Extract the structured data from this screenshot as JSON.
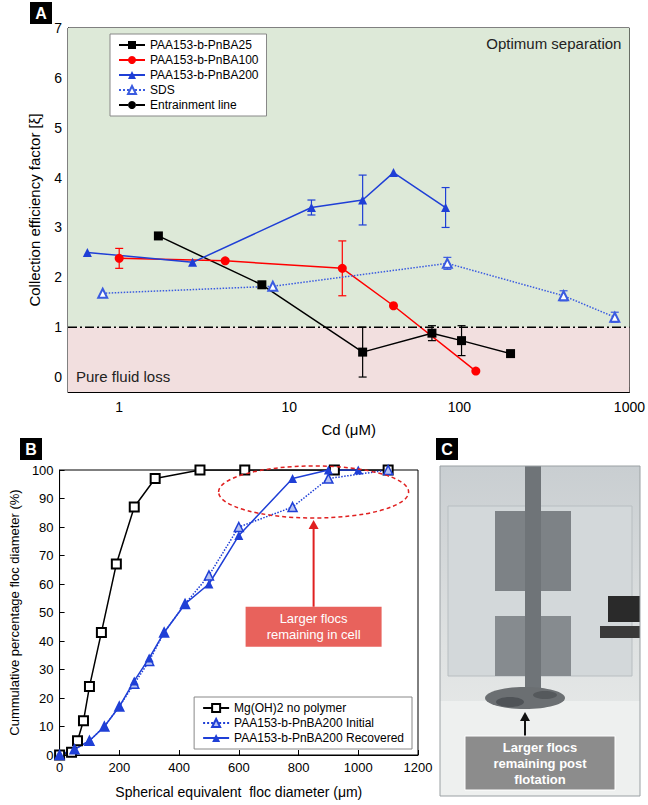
{
  "chart_data": [
    {
      "type": "line",
      "panel_label": "A",
      "x_label": "Cd (μM)",
      "y_label": "Collection efficiency factor [ξ]",
      "log": "x",
      "xlim": [
        0.5,
        1000
      ],
      "xticks": [
        1,
        10,
        100,
        1000
      ],
      "ylim": [
        -0.3,
        7
      ],
      "yticks": [
        0,
        1,
        2,
        3,
        4,
        5,
        6,
        7
      ],
      "grid": false,
      "legend": "upper left",
      "regions": [
        {
          "label": "Optimum separation",
          "range": [
            1,
            7
          ],
          "color": "#dde9d8"
        },
        {
          "label": "Pure fluid loss",
          "range": [
            -0.3,
            1
          ],
          "color": "#f2dfdf"
        }
      ],
      "series": [
        {
          "name": "PAA153-b-PnBA25",
          "color": "#000000",
          "marker": "square",
          "line_style": "solid",
          "x": [
            1.7,
            6.9,
            27,
            69,
            103,
            200
          ],
          "values": [
            2.83,
            1.85,
            0.5,
            0.88,
            0.73,
            0.47
          ],
          "errors": [
            null,
            null,
            0.5,
            0.15,
            0.3,
            null
          ]
        },
        {
          "name": "PAA153-b-PnBA100",
          "color": "#ff0000",
          "marker": "circle",
          "line_style": "solid",
          "x": [
            1.0,
            4.2,
            20.5,
            41,
            125
          ],
          "values": [
            2.38,
            2.33,
            2.18,
            1.43,
            0.12
          ],
          "errors": [
            0.2,
            null,
            0.55,
            null,
            null
          ]
        },
        {
          "name": "PAA153-b-PnBA200",
          "color": "#1f3fd6",
          "marker": "triangle",
          "line_style": "solid",
          "x": [
            0.65,
            2.7,
            13.5,
            27,
            41,
            83
          ],
          "values": [
            2.5,
            2.3,
            3.4,
            3.55,
            4.1,
            3.4
          ],
          "errors": [
            null,
            null,
            0.15,
            0.5,
            null,
            0.4
          ]
        },
        {
          "name": "SDS",
          "color": "#3a5be0",
          "marker": "open_triangle",
          "line_style": "dotted",
          "x": [
            0.8,
            8,
            85,
            410,
            820
          ],
          "values": [
            1.68,
            1.82,
            2.28,
            1.63,
            1.2
          ],
          "errors": [
            null,
            null,
            0.12,
            0.1,
            0.1
          ]
        },
        {
          "name": "Entrainment line",
          "color": "#000000",
          "marker": "none",
          "line_style": "dashdot",
          "x": [
            0.5,
            1000
          ],
          "values": [
            1,
            1
          ],
          "errors": [
            null,
            null
          ]
        }
      ]
    },
    {
      "type": "line",
      "panel_label": "B",
      "x_label": "Spherical equivalent  floc diameter (μm)",
      "y_label": "Cummulative percentage floc diameter (%)",
      "xlim": [
        0,
        1200
      ],
      "xticks": [
        0,
        200,
        400,
        600,
        800,
        1000,
        1200
      ],
      "ylim": [
        0,
        100
      ],
      "yticks": [
        0,
        10,
        20,
        30,
        40,
        50,
        60,
        70,
        80,
        90,
        100
      ],
      "grid": false,
      "legend": "lower right",
      "annotation": "Larger flocs remaining in cell",
      "series": [
        {
          "name": "Mg(OH)2 no polymer",
          "color": "#000000",
          "marker": "open_square",
          "line_style": "solid",
          "x": [
            0,
            40,
            60,
            80,
            100,
            140,
            190,
            250,
            320,
            470,
            620,
            920,
            1100
          ],
          "values": [
            0,
            1,
            5,
            12,
            24,
            43,
            67,
            87,
            97,
            100,
            100,
            100,
            100
          ]
        },
        {
          "name": "PAA153-b-PnBA200 Initial",
          "color": "#1f3fd6",
          "marker": "half_triangle",
          "line_style": "dotted",
          "x": [
            0,
            50,
            100,
            150,
            200,
            250,
            300,
            350,
            420,
            500,
            600,
            780,
            900,
            1100
          ],
          "values": [
            0,
            2,
            5,
            10,
            17,
            25,
            33,
            43,
            53,
            63,
            80,
            87,
            97,
            100
          ]
        },
        {
          "name": "PAA153-b-PnBA200 Recovered",
          "color": "#1f3fd6",
          "marker": "triangle",
          "line_style": "solid",
          "x": [
            0,
            50,
            100,
            150,
            200,
            250,
            300,
            350,
            420,
            500,
            600,
            780,
            900,
            1000
          ],
          "values": [
            0,
            2,
            5,
            10,
            17,
            26,
            34,
            43,
            53,
            60,
            77,
            97,
            100,
            100
          ]
        }
      ]
    }
  ],
  "panel_c": {
    "panel_label": "C",
    "annotation": "Larger flocs remaining post flotation"
  }
}
